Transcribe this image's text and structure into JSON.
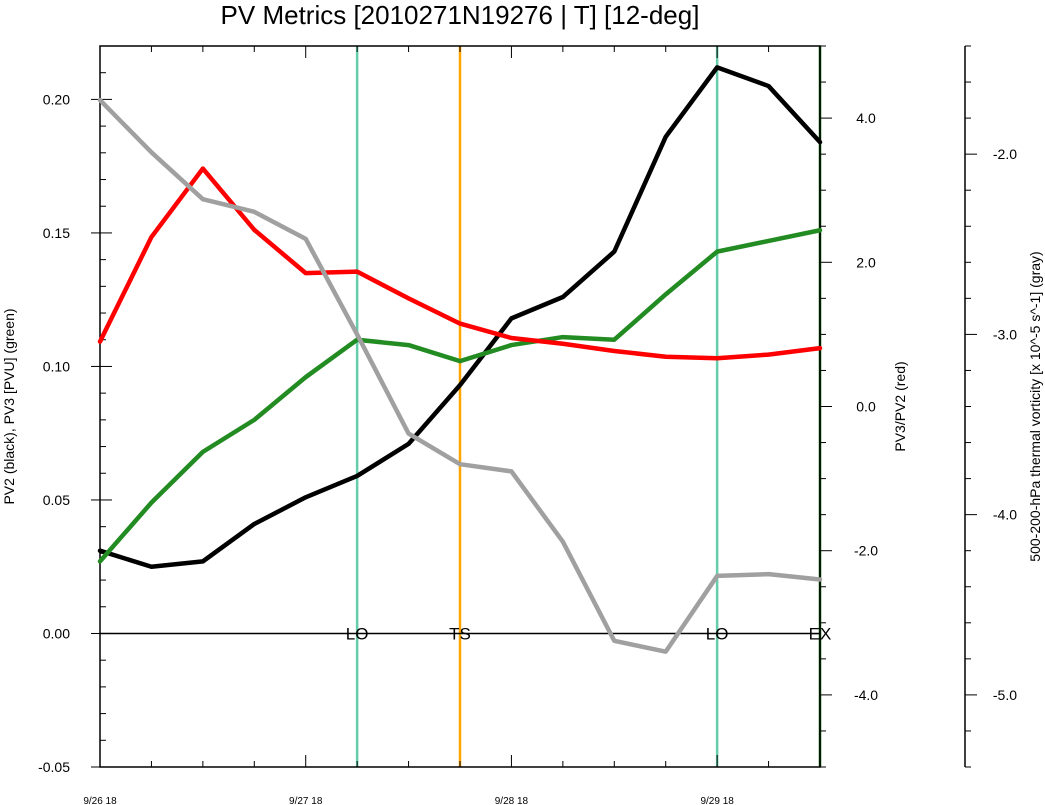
{
  "chart_data": {
    "type": "line",
    "title": "PV Metrics [2010271N19276 | T] [12-deg]",
    "x": [
      0,
      0.25,
      0.5,
      0.75,
      1,
      1.25,
      1.5,
      1.75,
      2,
      2.25,
      2.5,
      2.75,
      3,
      3.25,
      3.5
    ],
    "x_tick_labels": [
      {
        "x": 0,
        "label": "9/26 18"
      },
      {
        "x": 1,
        "label": "9/27 18"
      },
      {
        "x": 2,
        "label": "9/28 18"
      },
      {
        "x": 3,
        "label": "9/29 18"
      }
    ],
    "xlim": [
      0,
      3.5
    ],
    "axes": {
      "left": {
        "label": "PV2 (black), PV3 [PVU] (green)",
        "ylim": [
          -0.05,
          0.22
        ],
        "ticks": [
          "-0.05",
          "0.00",
          "0.05",
          "0.10",
          "0.15",
          "0.20"
        ]
      },
      "right": {
        "label": "PV3/PV2 (red)",
        "ylim": [
          -5.0,
          5.0
        ],
        "ticks": [
          "-4.0",
          "-2.0",
          "0.0",
          "2.0",
          "4.0"
        ]
      },
      "far_right": {
        "label": "500-200-hPa thermal vorticity [x 10^-5 s^-1] (gray)",
        "ylim": [
          -5.4,
          -1.4
        ],
        "ticks": [
          "-5.0",
          "-4.0",
          "-3.0",
          "-2.0"
        ]
      }
    },
    "series": [
      {
        "axis": "left",
        "color": "#000000",
        "values": [
          0.031,
          0.025,
          0.027,
          0.041,
          0.051,
          0.059,
          0.071,
          0.093,
          0.118,
          0.126,
          0.143,
          0.186,
          0.212,
          0.205,
          0.184
        ]
      },
      {
        "axis": "left",
        "color": "#228b22",
        "values": [
          0.027,
          0.049,
          0.068,
          0.08,
          0.096,
          0.11,
          0.108,
          0.102,
          0.108,
          0.111,
          0.11,
          0.127,
          0.143,
          0.147,
          0.151
        ]
      },
      {
        "axis": "right",
        "color": "#ff0000",
        "values": [
          0.9,
          2.35,
          3.3,
          2.45,
          1.85,
          1.87,
          1.5,
          1.15,
          0.95,
          0.87,
          0.77,
          0.69,
          0.67,
          0.72,
          0.81
        ]
      },
      {
        "axis": "far_right",
        "color": "#a0a0a0",
        "values": [
          -1.7,
          -1.99,
          -2.25,
          -2.32,
          -2.47,
          -3.0,
          -3.55,
          -3.72,
          -3.76,
          -4.15,
          -4.7,
          -4.76,
          -4.34,
          -4.33,
          -4.36
        ]
      }
    ],
    "vertical_lines": [
      {
        "x": 1.25,
        "color": "#66cdaa",
        "label": "LO"
      },
      {
        "x": 1.75,
        "color": "#ffa500",
        "label": "TS"
      },
      {
        "x": 3.0,
        "color": "#66cdaa",
        "label": "LO"
      },
      {
        "x": 3.5,
        "color": "#006400",
        "label": "EX"
      }
    ],
    "zero_line": true,
    "grid": false
  }
}
